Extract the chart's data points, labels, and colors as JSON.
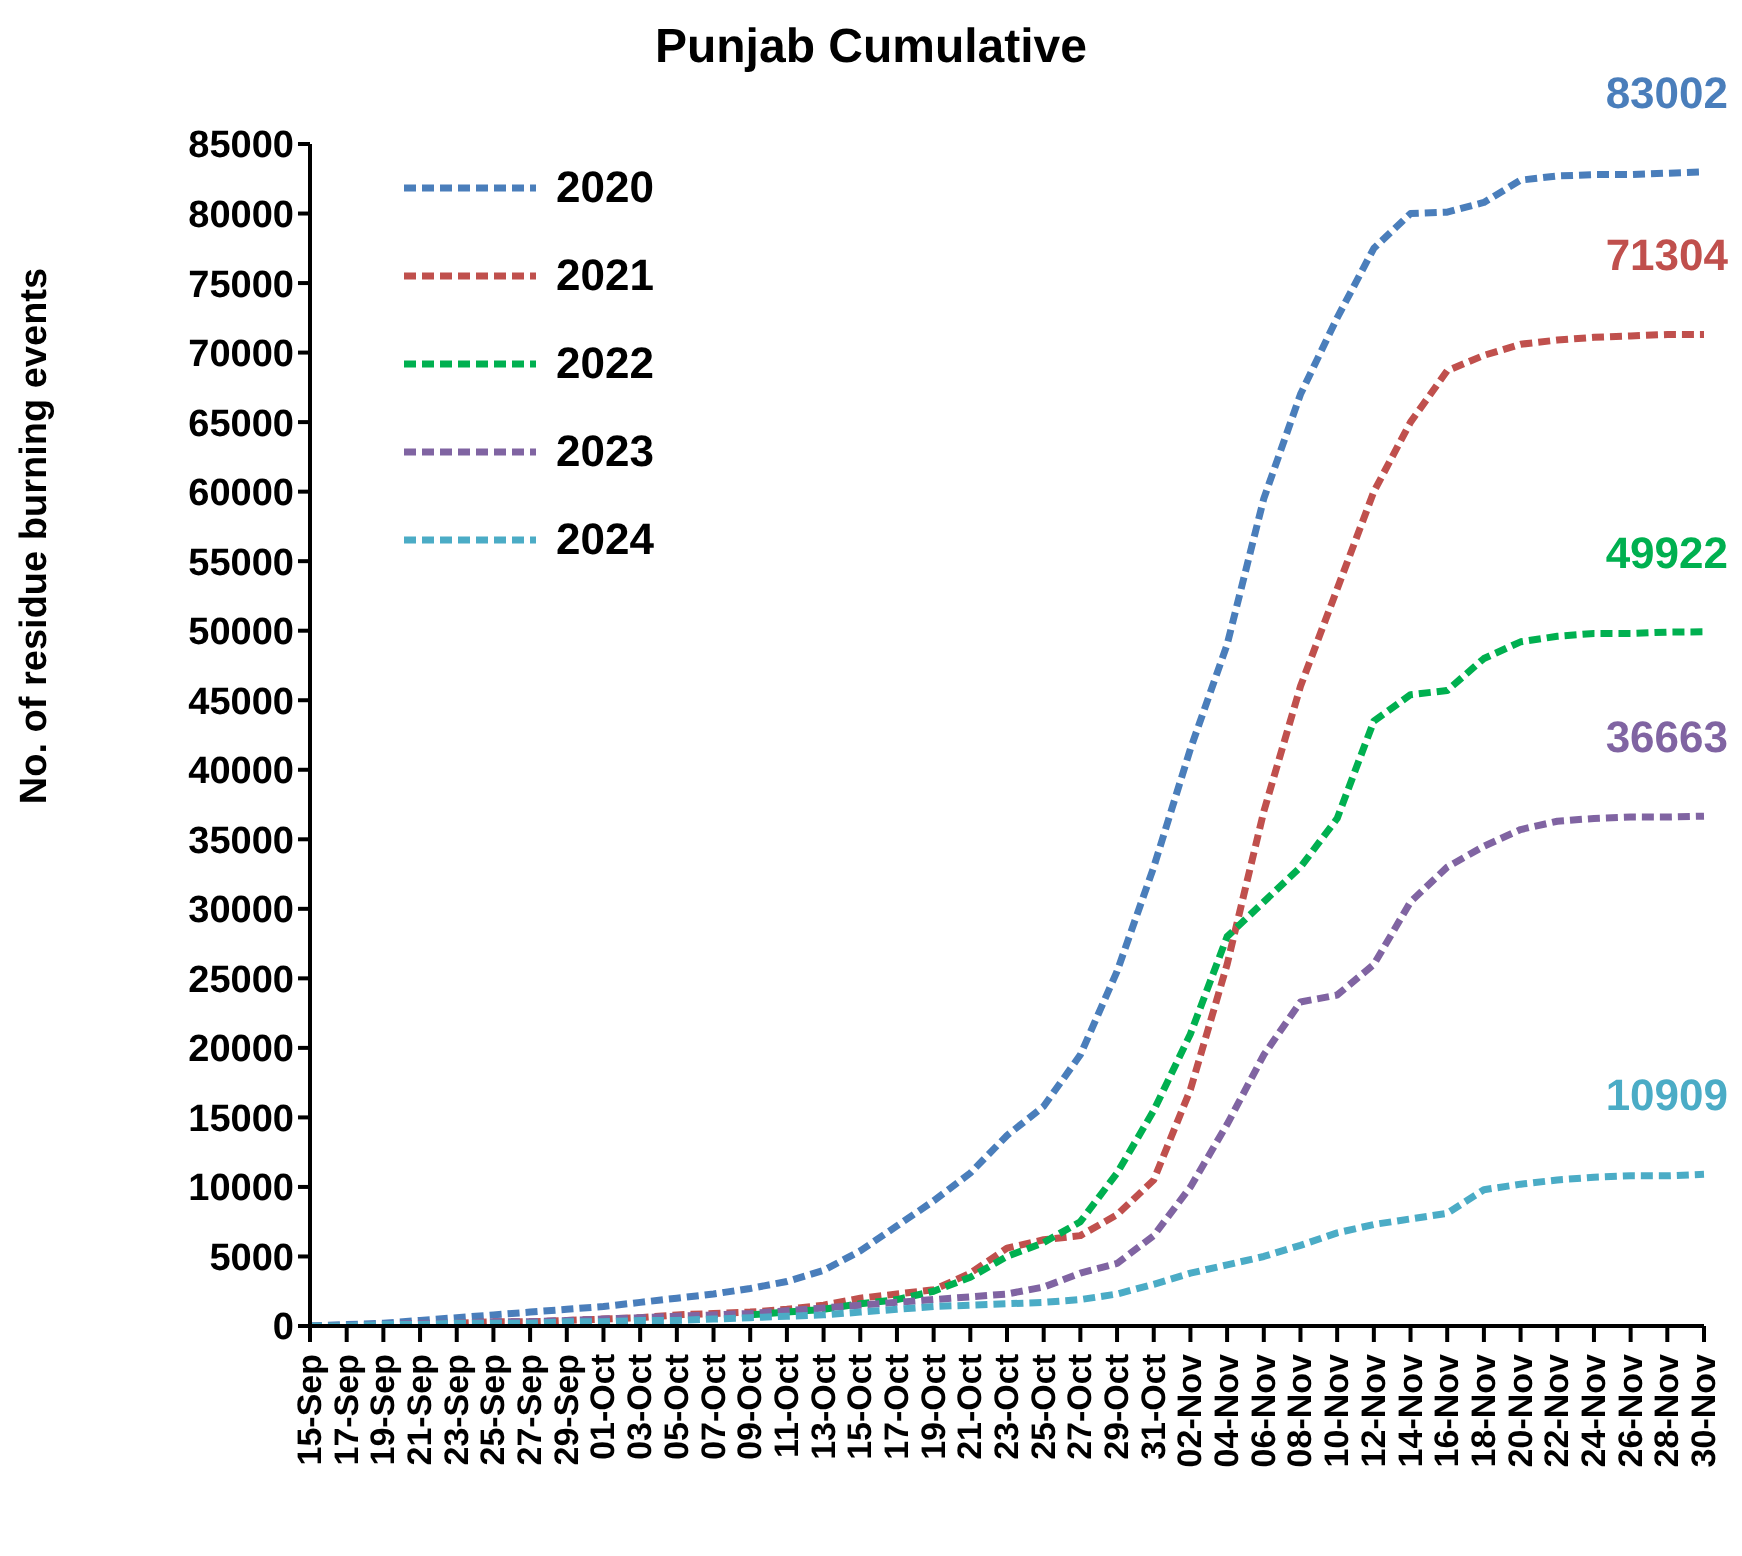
{
  "chart_data": {
    "type": "line",
    "title": "Punjab Cumulative",
    "ylabel": "No. of residue burning events",
    "categories": [
      "15-Sep",
      "17-Sep",
      "19-Sep",
      "21-Sep",
      "23-Sep",
      "25-Sep",
      "27-Sep",
      "29-Sep",
      "01-Oct",
      "03-Oct",
      "05-Oct",
      "07-Oct",
      "09-Oct",
      "11-Oct",
      "13-Oct",
      "15-Oct",
      "17-Oct",
      "19-Oct",
      "21-Oct",
      "23-Oct",
      "25-Oct",
      "27-Oct",
      "29-Oct",
      "31-Oct",
      "02-Nov",
      "04-Nov",
      "06-Nov",
      "08-Nov",
      "10-Nov",
      "12-Nov",
      "14-Nov",
      "16-Nov",
      "18-Nov",
      "20-Nov",
      "22-Nov",
      "24-Nov",
      "26-Nov",
      "28-Nov",
      "30-Nov"
    ],
    "series": [
      {
        "name": "2020",
        "color": "#4a7ebb",
        "values": [
          0,
          100,
          200,
          400,
          600,
          800,
          1000,
          1200,
          1400,
          1700,
          2000,
          2300,
          2700,
          3200,
          4000,
          5400,
          7200,
          9000,
          11000,
          13700,
          15800,
          19500,
          25500,
          33000,
          41500,
          49000,
          59500,
          67000,
          72500,
          77500,
          80000,
          80100,
          80800,
          82400,
          82700,
          82800,
          82800,
          82900,
          83002
        ],
        "value_labels": [
          null,
          null,
          null,
          null,
          null,
          null,
          null,
          null,
          null,
          null,
          null,
          null,
          null,
          null,
          null,
          null,
          null,
          null,
          null,
          null,
          null,
          null,
          null,
          null,
          null,
          null,
          null,
          null,
          null,
          null,
          null,
          null,
          null,
          null,
          null,
          null,
          null,
          null,
          "83002"
        ]
      },
      {
        "name": "2021",
        "color": "#c0504d",
        "values": [
          null,
          null,
          null,
          null,
          200,
          300,
          300,
          400,
          500,
          600,
          800,
          900,
          1000,
          1200,
          1500,
          2000,
          2300,
          2600,
          3800,
          5600,
          6200,
          6500,
          8000,
          10500,
          17000,
          26000,
          37000,
          46000,
          53000,
          60000,
          65000,
          68700,
          69800,
          70600,
          70900,
          71100,
          71200,
          71300,
          71304
        ],
        "value_labels": [
          null,
          null,
          null,
          null,
          null,
          null,
          null,
          null,
          null,
          null,
          null,
          null,
          null,
          null,
          null,
          null,
          null,
          null,
          null,
          null,
          null,
          null,
          null,
          null,
          null,
          null,
          null,
          null,
          null,
          null,
          null,
          null,
          null,
          null,
          null,
          null,
          null,
          null,
          "71304"
        ]
      },
      {
        "name": "2022",
        "color": "#00b050",
        "values": [
          null,
          null,
          null,
          null,
          null,
          null,
          null,
          null,
          null,
          null,
          null,
          null,
          800,
          1000,
          1200,
          1600,
          1900,
          2500,
          3500,
          5000,
          6000,
          7500,
          11000,
          15500,
          21000,
          28000,
          30500,
          33000,
          36500,
          43500,
          45400,
          45700,
          48000,
          49200,
          49600,
          49800,
          49800,
          49900,
          49922
        ],
        "value_labels": [
          null,
          null,
          null,
          null,
          null,
          null,
          null,
          null,
          null,
          null,
          null,
          null,
          null,
          null,
          null,
          null,
          null,
          null,
          null,
          null,
          null,
          null,
          null,
          null,
          null,
          null,
          null,
          null,
          null,
          null,
          null,
          null,
          null,
          null,
          null,
          null,
          null,
          null,
          "49922"
        ]
      },
      {
        "name": "2023",
        "color": "#8064a2",
        "values": [
          0,
          0,
          100,
          200,
          200,
          300,
          300,
          400,
          500,
          600,
          700,
          800,
          900,
          1100,
          1300,
          1500,
          1700,
          1900,
          2100,
          2300,
          2800,
          3800,
          4500,
          6500,
          10000,
          14500,
          19500,
          23300,
          23800,
          26000,
          30500,
          33000,
          34500,
          35700,
          36300,
          36500,
          36600,
          36600,
          36663
        ],
        "value_labels": [
          null,
          null,
          null,
          null,
          null,
          null,
          null,
          null,
          null,
          null,
          null,
          null,
          null,
          null,
          null,
          null,
          null,
          null,
          null,
          null,
          null,
          null,
          null,
          null,
          null,
          null,
          null,
          null,
          null,
          null,
          null,
          null,
          null,
          null,
          null,
          null,
          null,
          null,
          "36663"
        ]
      },
      {
        "name": "2024",
        "color": "#4bacc6",
        "values": [
          0,
          0,
          100,
          100,
          200,
          200,
          200,
          300,
          300,
          400,
          400,
          500,
          600,
          700,
          800,
          1000,
          1200,
          1400,
          1500,
          1600,
          1700,
          1900,
          2300,
          3000,
          3800,
          4400,
          5000,
          5800,
          6700,
          7300,
          7700,
          8100,
          9800,
          10200,
          10500,
          10700,
          10800,
          10800,
          10909
        ],
        "value_labels": [
          null,
          null,
          null,
          null,
          null,
          null,
          null,
          null,
          null,
          null,
          null,
          null,
          null,
          null,
          null,
          null,
          null,
          null,
          null,
          null,
          null,
          null,
          null,
          null,
          null,
          null,
          null,
          null,
          null,
          null,
          null,
          null,
          null,
          null,
          null,
          null,
          null,
          null,
          "10909"
        ]
      }
    ],
    "ylim": [
      0,
      85000
    ],
    "yticks": [
      0,
      5000,
      10000,
      15000,
      20000,
      25000,
      30000,
      35000,
      40000,
      45000,
      50000,
      55000,
      60000,
      65000,
      70000,
      75000,
      80000,
      85000
    ],
    "grid": false,
    "legend": "top left",
    "line_style": "dashed",
    "marker": "none"
  }
}
